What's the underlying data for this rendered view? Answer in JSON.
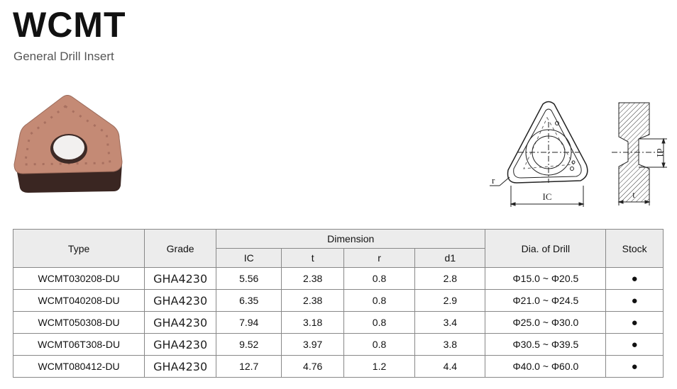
{
  "header": {
    "title": "WCMT",
    "subtitle": "General Drill Insert"
  },
  "drawing": {
    "labels": {
      "r": "r",
      "ic": "IC",
      "d1": "d1",
      "t": "t"
    }
  },
  "table": {
    "headers": {
      "type": "Type",
      "grade": "Grade",
      "dimension": "Dimension",
      "dimension_cols": [
        "IC",
        "t",
        "r",
        "d1"
      ],
      "drill": "Dia. of Drill",
      "stock": "Stock"
    },
    "rows": [
      [
        "WCMT030208-DU",
        "GHA4230",
        "5.56",
        "2.38",
        "0.8",
        "2.8",
        "Φ15.0 ~ Φ20.5",
        "●"
      ],
      [
        "WCMT040208-DU",
        "GHA4230",
        "6.35",
        "2.38",
        "0.8",
        "2.9",
        "Φ21.0 ~ Φ24.5",
        "●"
      ],
      [
        "WCMT050308-DU",
        "GHA4230",
        "7.94",
        "3.18",
        "0.8",
        "3.4",
        "Φ25.0 ~ Φ30.0",
        "●"
      ],
      [
        "WCMT06T308-DU",
        "GHA4230",
        "9.52",
        "3.97",
        "0.8",
        "3.8",
        "Φ30.5 ~ Φ39.5",
        "●"
      ],
      [
        "WCMT080412-DU",
        "GHA4230",
        "12.7",
        "4.76",
        "1.2",
        "4.4",
        "Φ40.0 ~ Φ60.0",
        "●"
      ]
    ]
  }
}
